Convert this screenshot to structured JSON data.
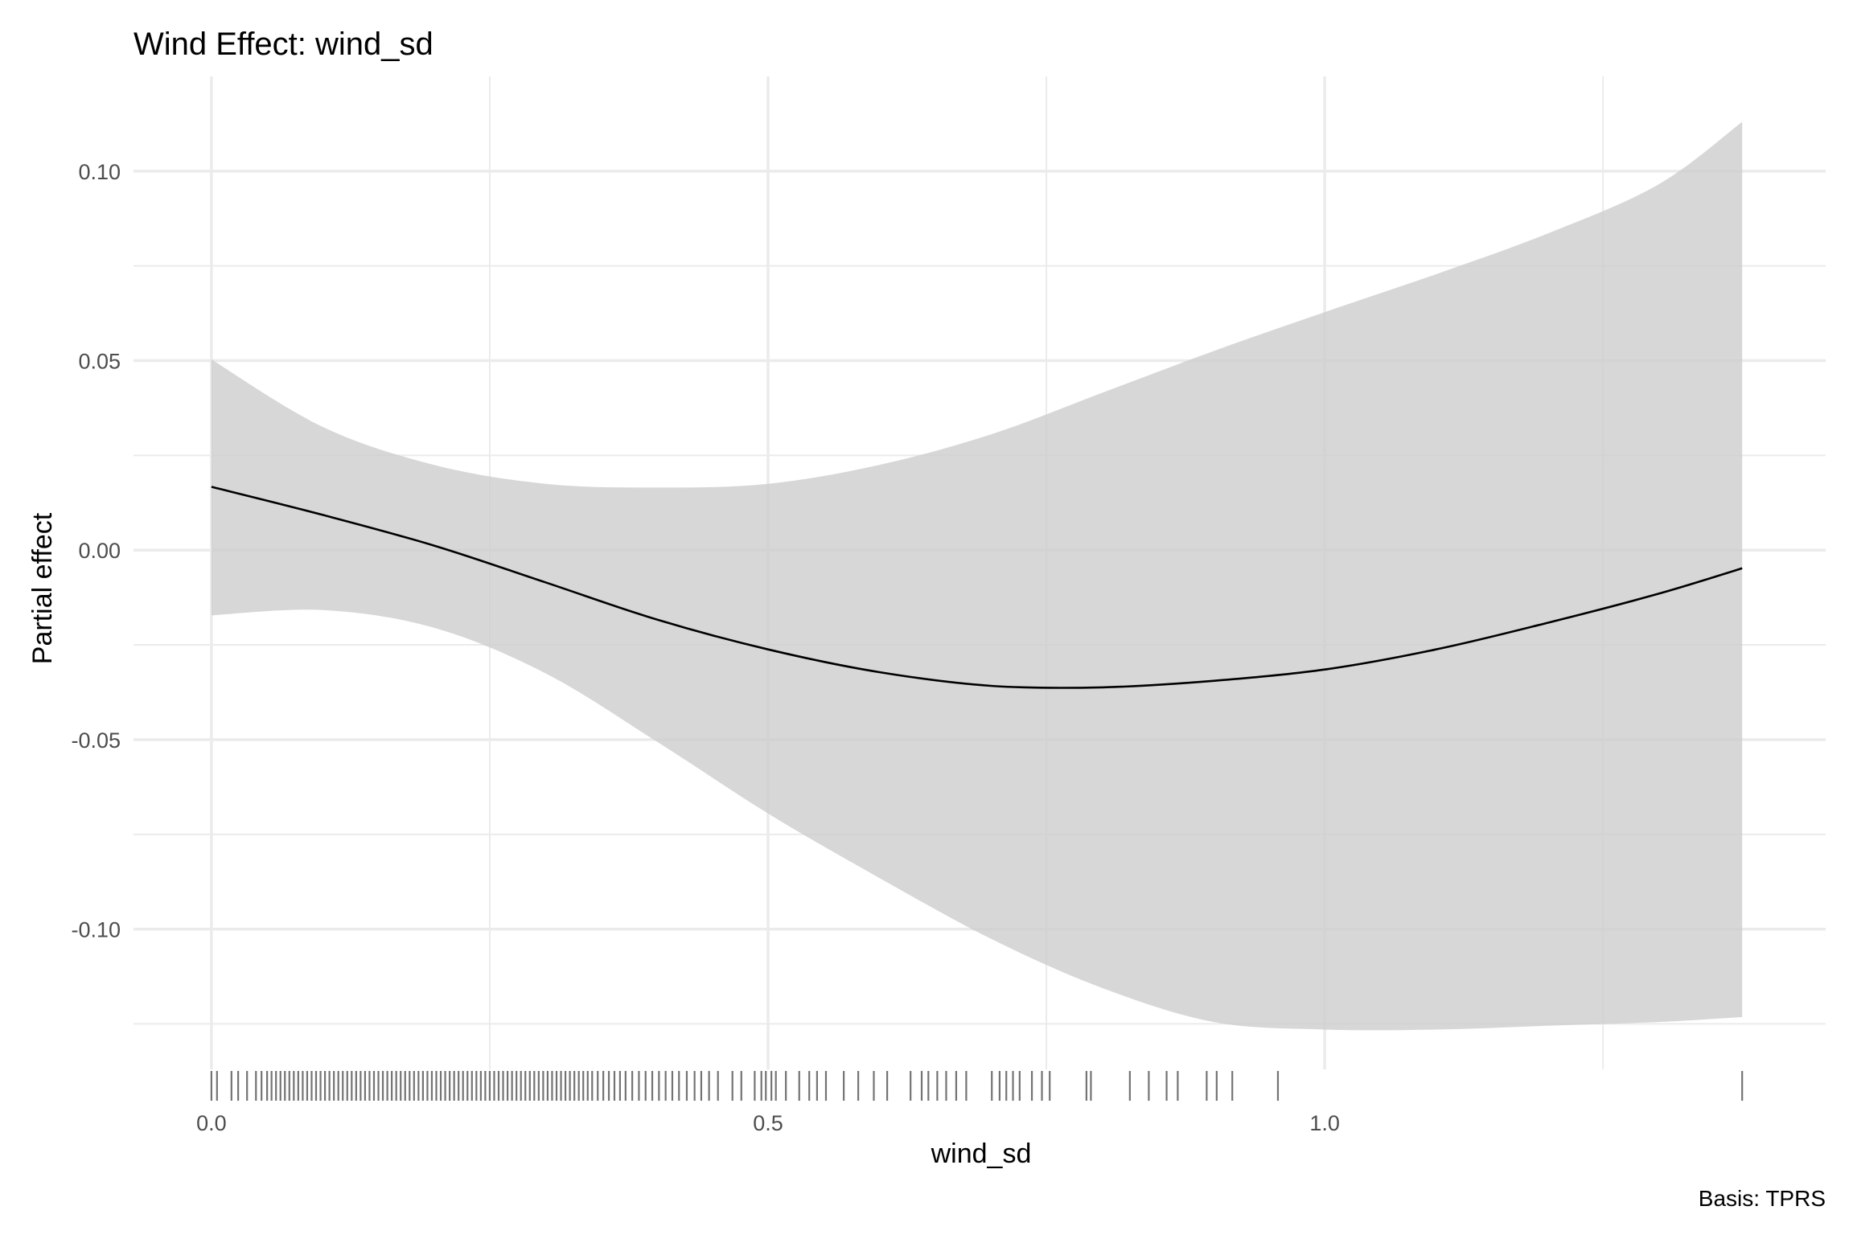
{
  "chart_data": {
    "type": "line",
    "title": "Wind Effect: wind_sd",
    "xlabel": "wind_sd",
    "ylabel": "Partial effect",
    "caption": "Basis: TPRS",
    "xlim": [
      -0.07,
      1.45
    ],
    "ylim": [
      -0.137,
      0.125
    ],
    "x_ticks": [
      0.0,
      0.5,
      1.0
    ],
    "x_tick_labels": [
      "0.0",
      "0.5",
      "1.0"
    ],
    "x_minor_ticks": [
      0.25,
      0.75,
      1.25
    ],
    "y_ticks": [
      0.1,
      0.05,
      0.0,
      -0.05,
      -0.1
    ],
    "y_tick_labels": [
      "0.10",
      "0.05",
      "0.00",
      "-0.05",
      "-0.10"
    ],
    "y_minor_ticks": [
      0.075,
      0.025,
      -0.025,
      -0.075,
      -0.125
    ],
    "grid": true,
    "colors": {
      "band": "#cccccc",
      "line": "#000000",
      "rug": "#000000",
      "grid": "#ebebeb"
    },
    "series": [
      {
        "x": [
          0.0,
          0.1,
          0.2,
          0.3,
          0.4,
          0.5,
          0.6,
          0.7,
          0.8,
          0.9,
          1.0,
          1.1,
          1.2,
          1.3,
          1.375
        ],
        "estimate": [
          0.0167,
          0.0093,
          0.0012,
          -0.0085,
          -0.0183,
          -0.0262,
          -0.0322,
          -0.0358,
          -0.0362,
          -0.0345,
          -0.0315,
          -0.0262,
          -0.0192,
          -0.0115,
          -0.0048
        ],
        "lower": [
          -0.0172,
          -0.0158,
          -0.0205,
          -0.0325,
          -0.0505,
          -0.0695,
          -0.0865,
          -0.1025,
          -0.1155,
          -0.1245,
          -0.1265,
          -0.1265,
          -0.1255,
          -0.1245,
          -0.1232
        ],
        "upper": [
          0.0503,
          0.0325,
          0.0225,
          0.0175,
          0.0165,
          0.0175,
          0.0225,
          0.0305,
          0.0415,
          0.0525,
          0.0628,
          0.0728,
          0.0835,
          0.0965,
          0.113
        ]
      }
    ],
    "rug": [
      0.0,
      0.005,
      0.018,
      0.024,
      0.032,
      0.04,
      0.045,
      0.05,
      0.054,
      0.058,
      0.062,
      0.066,
      0.07,
      0.074,
      0.078,
      0.082,
      0.086,
      0.09,
      0.094,
      0.098,
      0.102,
      0.106,
      0.11,
      0.114,
      0.118,
      0.122,
      0.126,
      0.13,
      0.134,
      0.138,
      0.142,
      0.146,
      0.15,
      0.154,
      0.158,
      0.162,
      0.166,
      0.17,
      0.174,
      0.178,
      0.182,
      0.186,
      0.19,
      0.194,
      0.198,
      0.202,
      0.206,
      0.21,
      0.214,
      0.218,
      0.222,
      0.226,
      0.23,
      0.234,
      0.238,
      0.242,
      0.246,
      0.25,
      0.254,
      0.258,
      0.262,
      0.266,
      0.27,
      0.274,
      0.278,
      0.282,
      0.286,
      0.29,
      0.294,
      0.298,
      0.302,
      0.306,
      0.31,
      0.314,
      0.318,
      0.322,
      0.326,
      0.33,
      0.334,
      0.338,
      0.342,
      0.347,
      0.352,
      0.357,
      0.362,
      0.367,
      0.372,
      0.378,
      0.384,
      0.39,
      0.396,
      0.402,
      0.408,
      0.414,
      0.42,
      0.427,
      0.434,
      0.44,
      0.447,
      0.455,
      0.468,
      0.476,
      0.488,
      0.494,
      0.498,
      0.503,
      0.507,
      0.516,
      0.528,
      0.537,
      0.544,
      0.552,
      0.568,
      0.581,
      0.595,
      0.607,
      0.628,
      0.638,
      0.644,
      0.652,
      0.66,
      0.669,
      0.678,
      0.701,
      0.708,
      0.714,
      0.72,
      0.726,
      0.737,
      0.746,
      0.753,
      0.786,
      0.79,
      0.825,
      0.842,
      0.858,
      0.868,
      0.894,
      0.903,
      0.917,
      0.958,
      1.375
    ]
  }
}
